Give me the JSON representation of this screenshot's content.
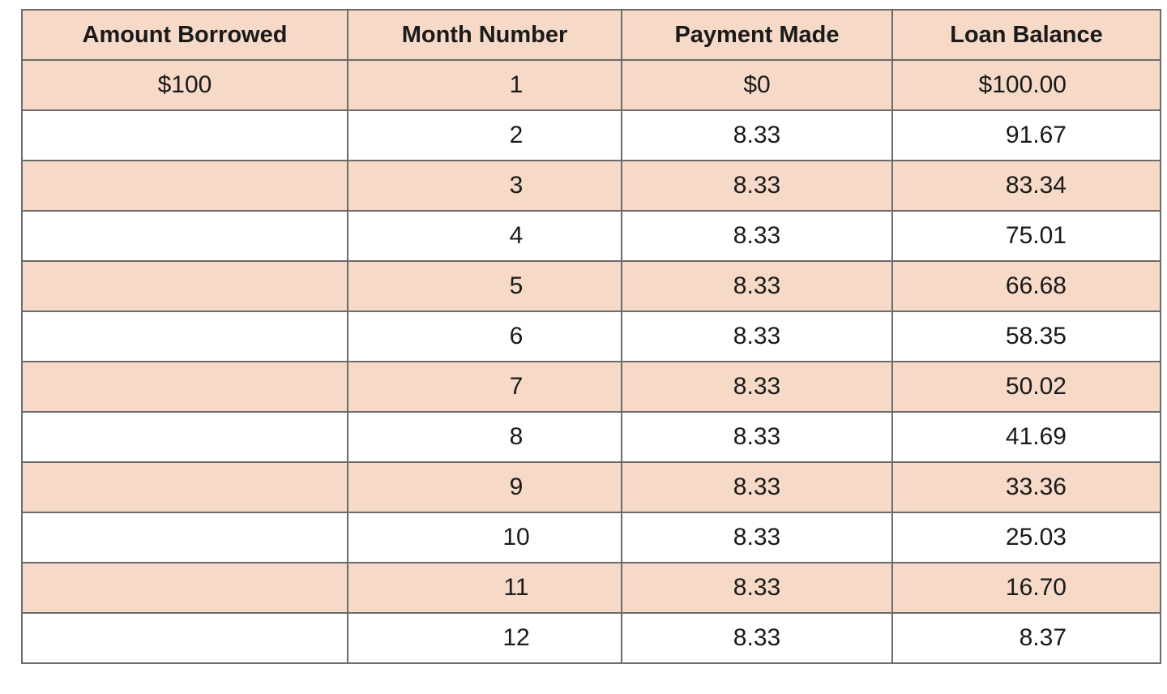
{
  "table": {
    "headers": {
      "amount_borrowed": "Amount Borrowed",
      "month_number": "Month Number",
      "payment_made": "Payment Made",
      "loan_balance": "Loan Balance"
    },
    "rows": [
      {
        "amount": "$100",
        "month": "1",
        "payment": "$0",
        "balance": "$100.00"
      },
      {
        "amount": "",
        "month": "2",
        "payment": "8.33",
        "balance": "91.67"
      },
      {
        "amount": "",
        "month": "3",
        "payment": "8.33",
        "balance": "83.34"
      },
      {
        "amount": "",
        "month": "4",
        "payment": "8.33",
        "balance": "75.01"
      },
      {
        "amount": "",
        "month": "5",
        "payment": "8.33",
        "balance": "66.68"
      },
      {
        "amount": "",
        "month": "6",
        "payment": "8.33",
        "balance": "58.35"
      },
      {
        "amount": "",
        "month": "7",
        "payment": "8.33",
        "balance": "50.02"
      },
      {
        "amount": "",
        "month": "8",
        "payment": "8.33",
        "balance": "41.69"
      },
      {
        "amount": "",
        "month": "9",
        "payment": "8.33",
        "balance": "33.36"
      },
      {
        "amount": "",
        "month": "10",
        "payment": "8.33",
        "balance": "25.03"
      },
      {
        "amount": "",
        "month": "11",
        "payment": "8.33",
        "balance": "16.70"
      },
      {
        "amount": "",
        "month": "12",
        "payment": "8.33",
        "balance": "8.37"
      }
    ]
  },
  "colors": {
    "shaded_row": "#f6d9c6",
    "plain_row": "#ffffff",
    "border": "#6b6b6b"
  }
}
